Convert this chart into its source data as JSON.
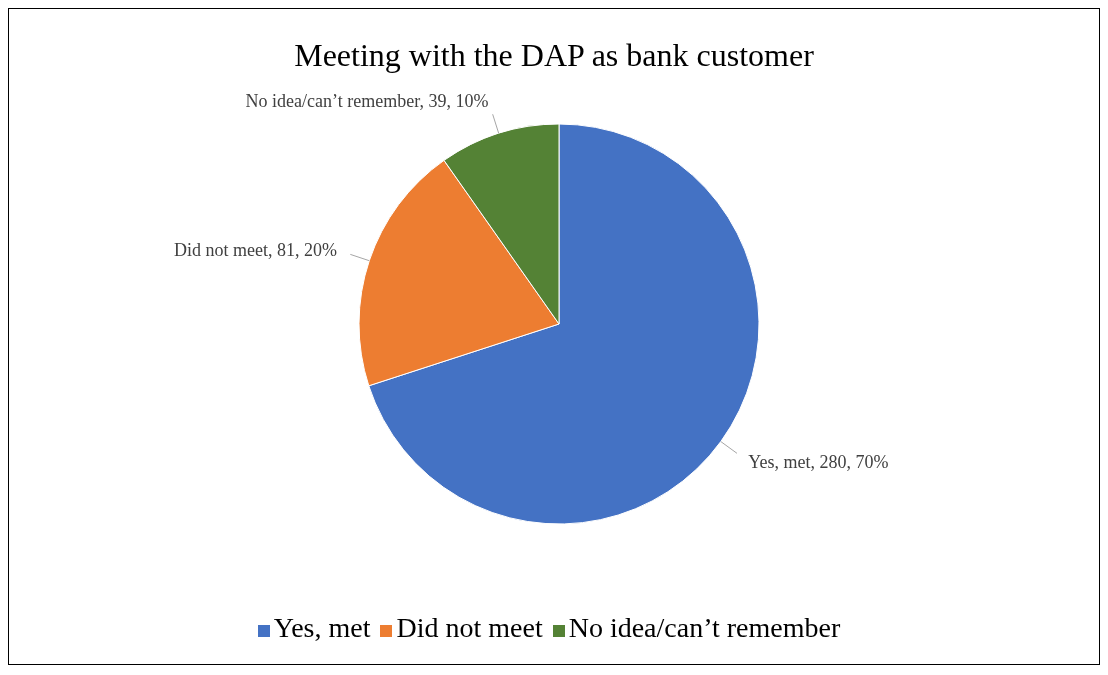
{
  "chart_data": {
    "type": "pie",
    "title": "Meeting with the DAP as bank customer",
    "categories": [
      "Yes, met",
      "Did not meet",
      "No idea/can’t remember"
    ],
    "values": [
      280,
      81,
      39
    ],
    "colors": [
      "#4472c4",
      "#ed7d31",
      "#548235"
    ],
    "value_labels": [
      "Yes, met, 280, 70%",
      "Did not meet, 81, 20%",
      "No idea/can’t remember, 39, 10%"
    ],
    "legend": "bottom"
  }
}
